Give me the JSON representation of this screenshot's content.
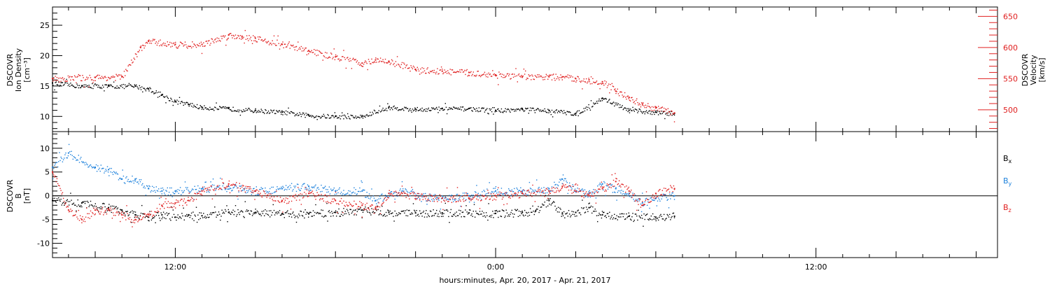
{
  "figure": {
    "xlabel": "hours:minutes, Apr. 20, 2017 - Apr. 21, 2017",
    "xticks": [
      "12:00",
      "0:00",
      "12:00"
    ]
  },
  "colors": {
    "black": "#000000",
    "blue": "#1e82dc",
    "red": "#e02020"
  },
  "chart_data": [
    {
      "type": "scatter",
      "title": "",
      "x_unit": "hours since Apr. 20, 2017 00:00",
      "xlim": [
        7.4,
        42.8
      ],
      "ylabel_left": [
        "DSCOVR",
        "Ion Density",
        "[cm⁻³]"
      ],
      "ylabel_right": [
        "DSCOVR",
        "Velocity",
        "[km/s]"
      ],
      "ylim_left": [
        7.5,
        28
      ],
      "ylim_right": [
        465,
        665
      ],
      "yticks_left": [
        10,
        15,
        20,
        25
      ],
      "yticks_right": [
        500,
        550,
        600,
        650
      ],
      "grid": false,
      "series": [
        {
          "name": "",
          "axis": "left",
          "color": "#000000",
          "x": [
            7.4,
            8.5,
            9.5,
            10.5,
            11.0,
            11.5,
            12.0,
            12.5,
            13.0,
            14.0,
            15.0,
            16.0,
            17.0,
            18.0,
            19.0,
            20.0,
            21.0,
            22.0,
            23.0,
            24.0,
            25.0,
            26.0,
            27.0,
            28.0,
            29.0,
            30.0,
            30.7
          ],
          "y": [
            15.5,
            15.0,
            15.0,
            15.0,
            14.5,
            13.5,
            12.5,
            12.0,
            11.5,
            11.3,
            11.0,
            10.7,
            10.2,
            10.0,
            10.0,
            11.5,
            11.2,
            11.3,
            11.3,
            11.0,
            11.2,
            11.0,
            10.5,
            13.0,
            11.0,
            10.7,
            10.5
          ]
        },
        {
          "name": "",
          "axis": "right",
          "color": "#e02020",
          "x": [
            7.4,
            9.0,
            10.0,
            10.7,
            11.0,
            12.0,
            13.0,
            14.0,
            14.5,
            15.0,
            16.0,
            17.0,
            18.0,
            19.0,
            19.5,
            20.0,
            21.0,
            22.0,
            23.0,
            24.0,
            25.0,
            26.0,
            26.5,
            27.0,
            27.5,
            28.0,
            28.5,
            29.0,
            29.5,
            30.0,
            30.7
          ],
          "y": [
            550,
            552,
            553,
            600,
            610,
            605,
            605,
            620,
            618,
            615,
            605,
            595,
            585,
            575,
            580,
            578,
            565,
            562,
            560,
            556,
            553,
            553,
            553,
            550,
            548,
            545,
            530,
            520,
            508,
            503,
            495
          ]
        }
      ]
    },
    {
      "type": "scatter",
      "title": "",
      "x_unit": "hours since Apr. 20, 2017 00:00",
      "xlim": [
        7.4,
        42.8
      ],
      "ylabel_left": [
        "DSCOVR",
        "B",
        "[nT]"
      ],
      "ylim": [
        -13,
        13.5
      ],
      "yticks": [
        -10,
        -5,
        0,
        5,
        10
      ],
      "zero_line": true,
      "grid": false,
      "legend": {
        "placement": "right"
      },
      "series": [
        {
          "name": "B",
          "sub": "x",
          "color": "#000000",
          "x": [
            7.4,
            8.5,
            9.5,
            10.0,
            10.5,
            11.0,
            11.5,
            12.0,
            12.5,
            13.0,
            14.0,
            15.0,
            16.0,
            17.0,
            18.0,
            19.0,
            20.0,
            21.0,
            22.0,
            23.0,
            24.0,
            25.0,
            25.5,
            26.0,
            26.5,
            27.0,
            27.5,
            28.0,
            29.0,
            30.0,
            30.7
          ],
          "y": [
            -1.0,
            -1.5,
            -2.5,
            -3.0,
            -4.0,
            -4.5,
            -4.0,
            -4.5,
            -4.0,
            -4.2,
            -3.5,
            -3.5,
            -3.8,
            -3.8,
            -3.5,
            -3.0,
            -3.5,
            -3.6,
            -3.6,
            -3.6,
            -3.7,
            -3.5,
            -3.2,
            -1.0,
            -3.8,
            -3.5,
            -2.5,
            -4.0,
            -4.3,
            -4.5,
            -4.3
          ]
        },
        {
          "name": "B",
          "sub": "y",
          "color": "#1e82dc",
          "x": [
            7.4,
            8.0,
            9.0,
            9.5,
            10.0,
            10.5,
            11.0,
            11.5,
            12.0,
            13.0,
            14.0,
            15.0,
            16.0,
            17.0,
            18.0,
            19.0,
            19.5,
            20.0,
            20.5,
            21.0,
            22.0,
            23.0,
            24.0,
            25.0,
            26.0,
            26.5,
            27.0,
            27.5,
            28.0,
            28.5,
            29.0,
            29.5,
            30.0,
            30.7
          ],
          "y": [
            6.0,
            9.0,
            6.0,
            5.5,
            3.5,
            3.5,
            1.5,
            1.0,
            1.0,
            1.5,
            2.0,
            1.0,
            1.5,
            2.0,
            1.0,
            1.0,
            -1.0,
            0.5,
            1.0,
            0.0,
            -0.5,
            0.0,
            1.0,
            1.0,
            1.5,
            3.5,
            1.0,
            0.5,
            2.5,
            1.5,
            0.5,
            -1.5,
            -0.5,
            0.0
          ]
        },
        {
          "name": "B",
          "sub": "z",
          "color": "#e02020",
          "x": [
            7.4,
            8.0,
            8.5,
            9.0,
            9.5,
            10.0,
            10.5,
            11.0,
            11.5,
            12.0,
            12.5,
            13.0,
            14.0,
            15.0,
            16.0,
            17.0,
            18.0,
            19.0,
            19.5,
            20.0,
            20.5,
            21.0,
            22.0,
            23.0,
            24.0,
            25.0,
            26.0,
            26.5,
            27.0,
            27.5,
            28.0,
            28.5,
            29.0,
            29.5,
            30.0,
            30.7
          ],
          "y": [
            5.0,
            -3.0,
            -5.0,
            -3.0,
            -3.0,
            -4.0,
            -5.0,
            -4.0,
            -2.0,
            -1.5,
            -1.0,
            1.0,
            2.5,
            1.0,
            -1.0,
            0.5,
            -1.0,
            -2.0,
            -2.5,
            0.5,
            0.5,
            0.0,
            -0.5,
            -0.5,
            0.0,
            0.5,
            1.0,
            2.0,
            1.0,
            0.0,
            1.5,
            3.0,
            1.0,
            -2.0,
            0.5,
            1.5
          ]
        }
      ]
    }
  ]
}
